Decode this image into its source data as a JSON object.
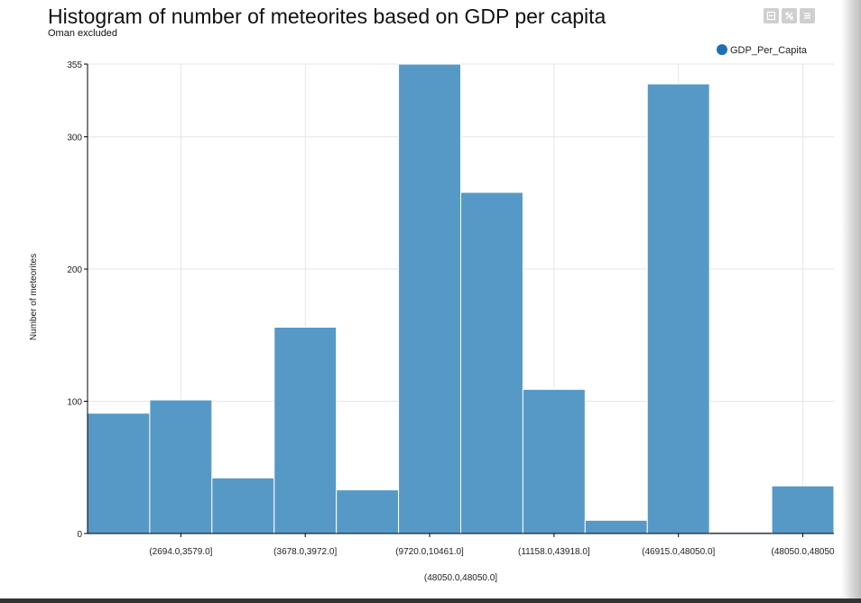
{
  "chart_data": {
    "type": "bar",
    "title": "Histogram of number of meteorites based on GDP per capita",
    "subtitle": "Oman excluded",
    "ylabel": "Number of meteorites",
    "xlabel": "",
    "ylim": [
      0,
      355
    ],
    "yticks": [
      0,
      100,
      200,
      300,
      355
    ],
    "grid": true,
    "legend": {
      "position": "top-right",
      "label": "GDP_Per_Capita"
    },
    "color": "#5799c6",
    "values": [
      91,
      101,
      42,
      156,
      33,
      355,
      258,
      109,
      10,
      340,
      1,
      36
    ],
    "x_tick_labels": [
      {
        "label": "(2694.0,3579.0]",
        "bar_index": 1
      },
      {
        "label": "(3678.0,3972.0]",
        "bar_index": 3
      },
      {
        "label": "(9720.0,10461.0]",
        "bar_index": 5
      },
      {
        "label": "(11158.0,43918.0]",
        "bar_index": 7
      },
      {
        "label": "(46915.0,48050.0]",
        "bar_index": 9
      },
      {
        "label": "(48050.0,48050",
        "bar_index": 11
      }
    ],
    "x_tick_labels_row2": [
      {
        "label": "(48050.0,48050.0]",
        "bar_index": 6
      }
    ]
  },
  "toolbar": {
    "buttons": [
      {
        "icon": "minimize-icon"
      },
      {
        "icon": "expand-icon"
      },
      {
        "icon": "menu-icon"
      }
    ]
  }
}
